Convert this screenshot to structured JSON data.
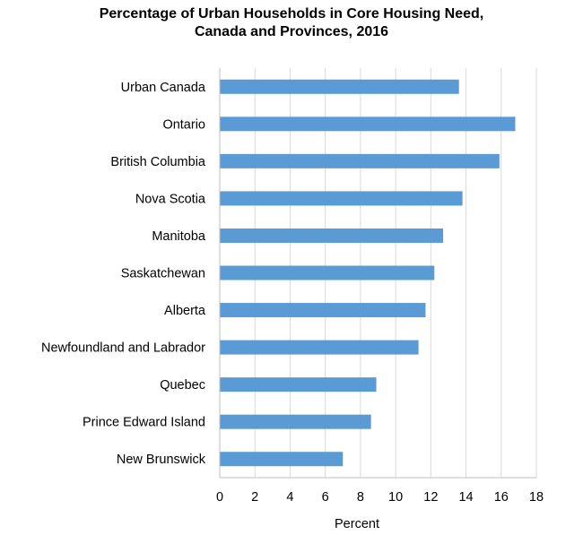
{
  "chart_data": {
    "type": "bar",
    "orientation": "horizontal",
    "title_lines": [
      "Percentage of Urban Households in Core Housing Need,",
      "Canada and Provinces, 2016"
    ],
    "categories": [
      "Urban Canada",
      "Ontario",
      "British Columbia",
      "Nova Scotia",
      "Manitoba",
      "Saskatchewan",
      "Alberta",
      "Newfoundland and Labrador",
      "Quebec",
      "Prince Edward Island",
      "New Brunswick"
    ],
    "values": [
      13.6,
      16.8,
      15.9,
      13.8,
      12.7,
      12.2,
      11.7,
      11.3,
      8.9,
      8.6,
      7.0
    ],
    "xlabel": "Percent",
    "ylabel": "",
    "xlim": [
      0,
      18
    ],
    "xticks": [
      0,
      2,
      4,
      6,
      8,
      10,
      12,
      14,
      16,
      18
    ],
    "grid": "vertical",
    "bar_color": "#5B9BD5",
    "grid_color": "#D9D9D9",
    "axis_color": "#BFBFBF"
  }
}
